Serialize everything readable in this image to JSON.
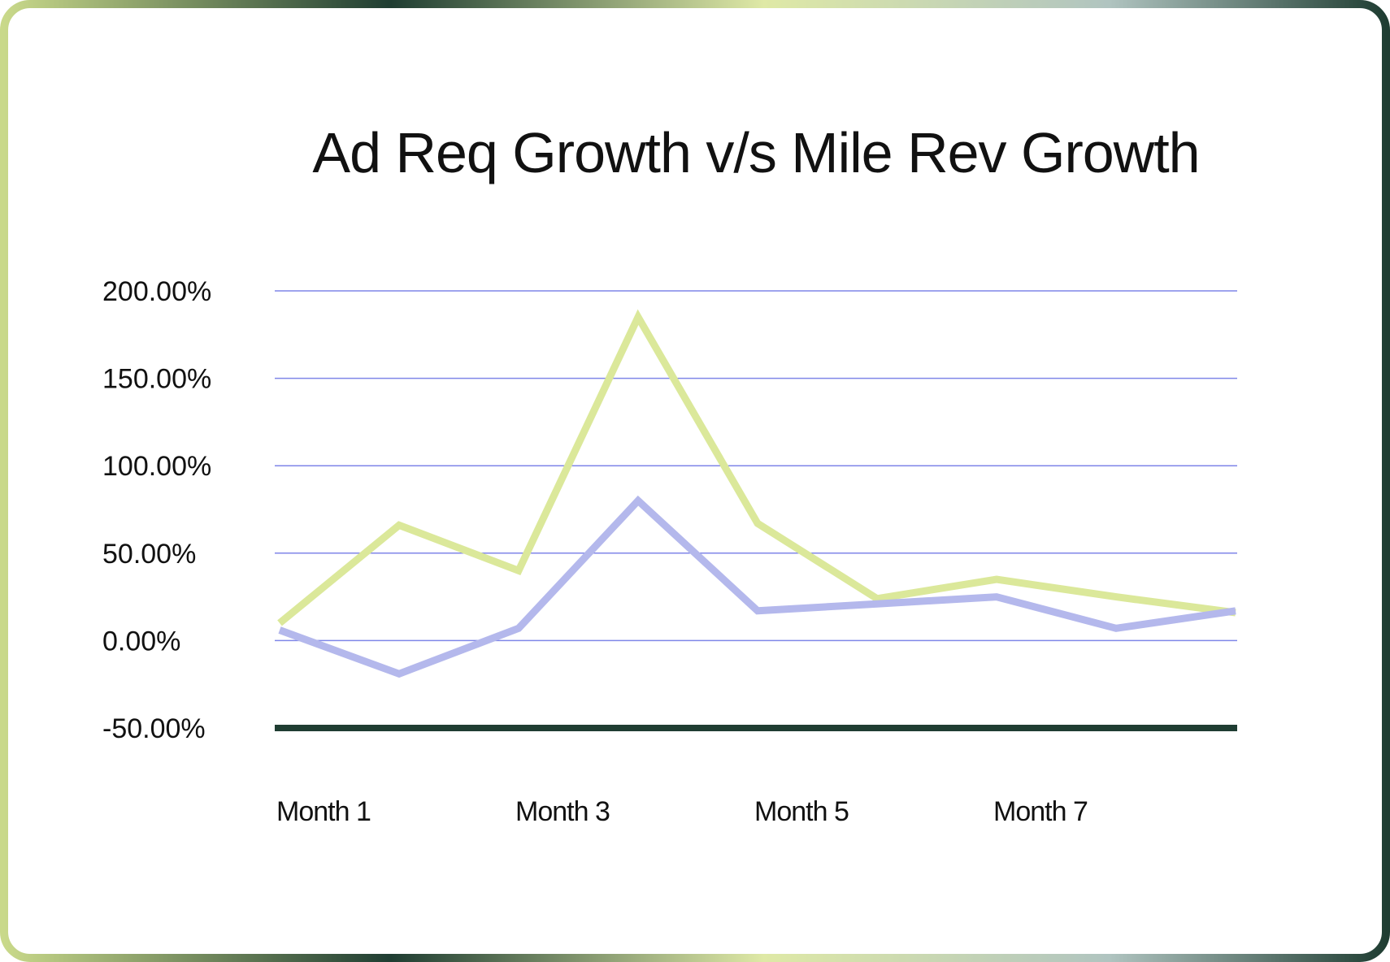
{
  "colors": {
    "frame_gradient": [
      "#c9d98a",
      "#1f3d32",
      "#dfe9a6",
      "#b0c4c0",
      "#1f3d32"
    ],
    "grid": "#7f86e8",
    "baseline": "#1f3d32",
    "series_ad_req": "#dbe89a",
    "series_mile_rev": "#b4b8ec"
  },
  "chart_data": {
    "type": "line",
    "title": "Ad Req Growth v/s Mile Rev Growth",
    "xlabel": "",
    "ylabel": "",
    "ylim": [
      -50,
      200
    ],
    "yticks": [
      200,
      150,
      100,
      50,
      0,
      -50
    ],
    "ytick_labels": [
      "200.00%",
      "150.00%",
      "100.00%",
      "50.00%",
      "0.00%",
      "-50.00%"
    ],
    "x": [
      1,
      2,
      3,
      4,
      5,
      6,
      7,
      8,
      9
    ],
    "xtick_positions": [
      1,
      3,
      5,
      7
    ],
    "xtick_labels": [
      "Month 1",
      "Month 3",
      "Month 5",
      "Month 7"
    ],
    "grid": true,
    "legend": "none",
    "series": [
      {
        "name": "Ad Req Growth",
        "values": [
          10,
          66,
          40,
          185,
          67,
          24,
          35,
          25,
          16
        ]
      },
      {
        "name": "Mile Rev Growth",
        "values": [
          6,
          -19,
          7,
          80,
          17,
          21,
          25,
          7,
          17
        ]
      }
    ]
  }
}
